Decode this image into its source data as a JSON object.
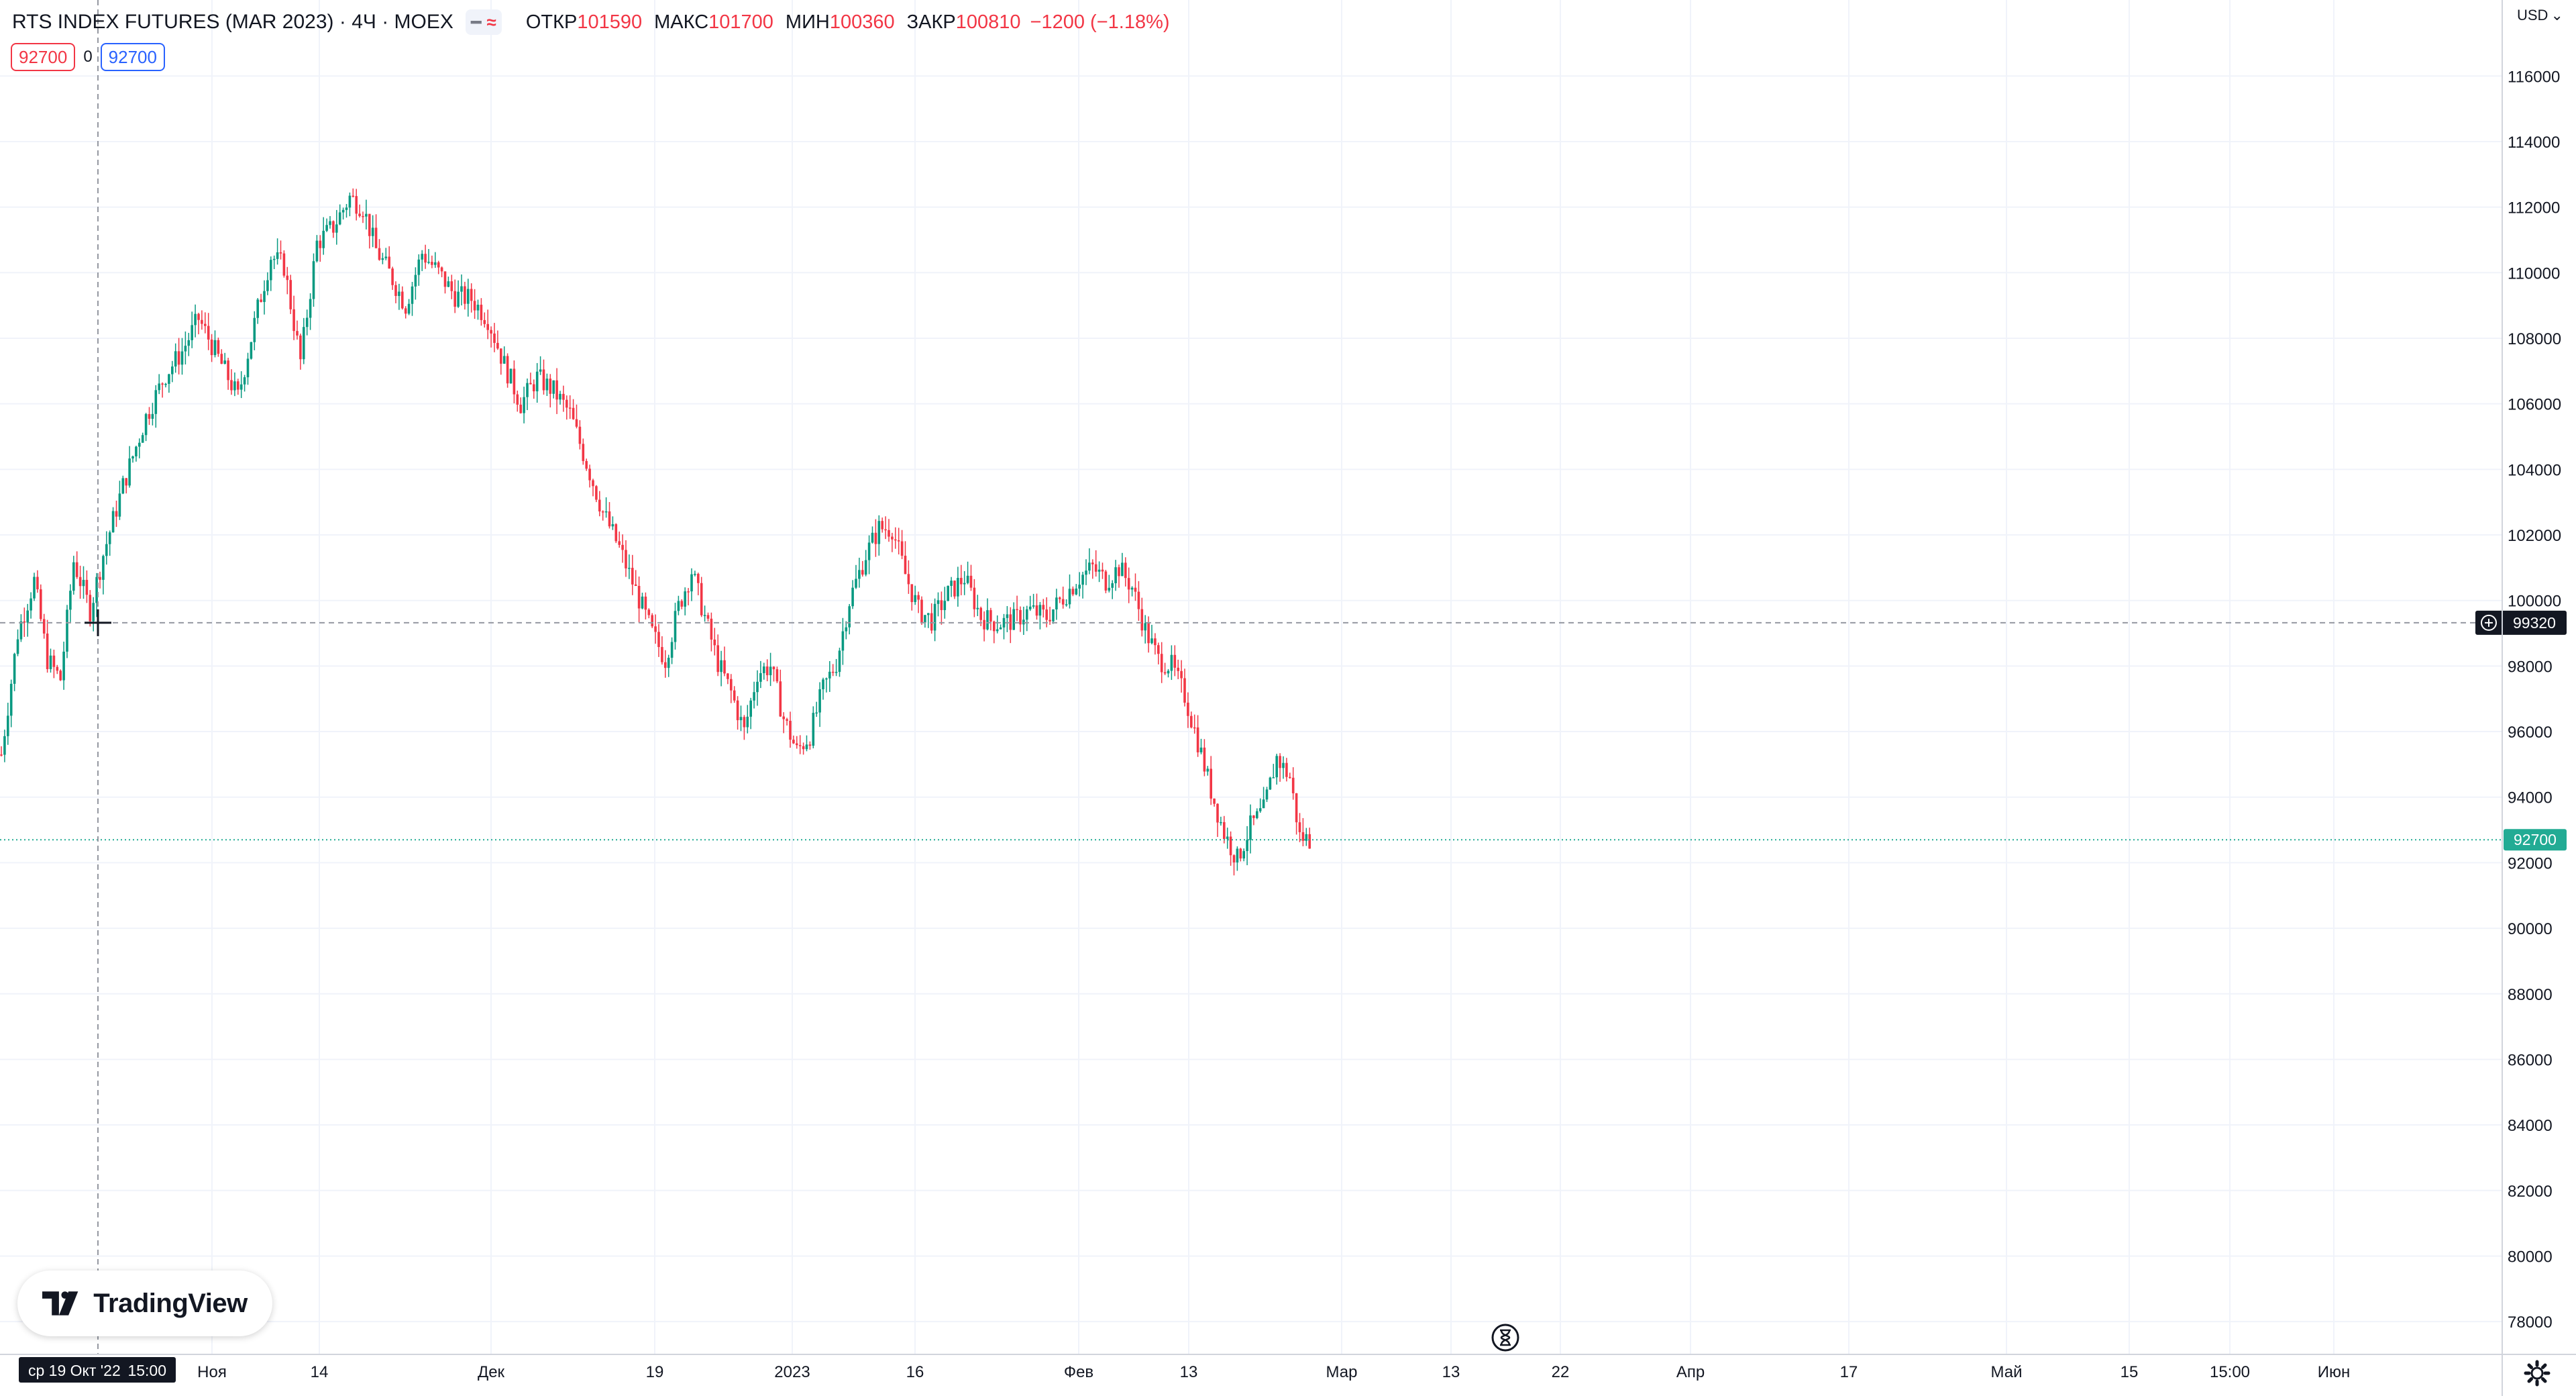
{
  "legend": {
    "title": "RTS INDEX FUTURES (MAR 2023) · 4Ч · MOEX",
    "collapse_icon": "minus-icon",
    "compare_icon": "wave-icon",
    "open_label": "ОТКР",
    "open_value": "101590",
    "high_label": "МАКС",
    "high_value": "101700",
    "low_label": "МИН",
    "low_value": "100360",
    "close_label": "ЗАКР",
    "close_value": "100810",
    "change": "−1200 (−1.18%)"
  },
  "order_row": {
    "sell_price": "92700",
    "spread": "0",
    "buy_price": "92700"
  },
  "currency": {
    "label": "USD",
    "icon": "chevron-down-icon"
  },
  "branding": {
    "logo_text": "TradingView"
  },
  "crosshair": {
    "price_label": "99320",
    "time_label": "ср 19 Окт '22",
    "time_label_hour": "15:00",
    "icon": "plus-circle-icon"
  },
  "last_price_label": "92700",
  "icons": {
    "settings": "gear-icon",
    "replay": "hourglass-icon"
  },
  "colors": {
    "up": "#089981",
    "down": "#f23645",
    "grid": "#f0f3fa",
    "crosshair_label_bg": "#131722",
    "last_price_bg": "#22ab94"
  },
  "chart_data": {
    "type": "candlestick",
    "title": "RTS INDEX FUTURES (MAR 2023) · 4Ч · MOEX",
    "ylim": [
      77000,
      117500
    ],
    "y_ticks": [
      116000,
      114000,
      112000,
      110000,
      108000,
      106000,
      104000,
      102000,
      100000,
      98000,
      96000,
      94000,
      92000,
      90000,
      88000,
      86000,
      84000,
      82000,
      80000,
      78000
    ],
    "x_ticks": [
      "Ноя",
      "14",
      "Дек",
      "19",
      "2023",
      "16",
      "Фев",
      "13",
      "Мар",
      "13",
      "22",
      "Апр",
      "17",
      "Май",
      "15",
      "15:00",
      "Июн"
    ],
    "grid": true,
    "legend_position": "top-left",
    "crosshair_price": 99320,
    "last_price": 92700,
    "close_path": [
      [
        0,
        95300
      ],
      [
        5,
        99000
      ],
      [
        10,
        100600
      ],
      [
        14,
        98200
      ],
      [
        18,
        97600
      ],
      [
        22,
        101200
      ],
      [
        27,
        99700
      ],
      [
        31,
        101400
      ],
      [
        37,
        103500
      ],
      [
        44,
        105600
      ],
      [
        50,
        106900
      ],
      [
        55,
        107600
      ],
      [
        60,
        108600
      ],
      [
        67,
        107200
      ],
      [
        72,
        106200
      ],
      [
        78,
        108900
      ],
      [
        82,
        110500
      ],
      [
        86,
        110200
      ],
      [
        91,
        107300
      ],
      [
        96,
        110900
      ],
      [
        101,
        111400
      ],
      [
        106,
        112300
      ],
      [
        110,
        112000
      ],
      [
        114,
        110700
      ],
      [
        118,
        110000
      ],
      [
        123,
        109000
      ],
      [
        128,
        110600
      ],
      [
        133,
        110000
      ],
      [
        138,
        109300
      ],
      [
        143,
        109200
      ],
      [
        148,
        108600
      ],
      [
        153,
        107200
      ],
      [
        158,
        106000
      ],
      [
        163,
        106800
      ],
      [
        168,
        106400
      ],
      [
        173,
        105700
      ],
      [
        178,
        104200
      ],
      [
        183,
        102700
      ],
      [
        188,
        101600
      ],
      [
        193,
        100300
      ],
      [
        198,
        99000
      ],
      [
        202,
        98200
      ],
      [
        206,
        99800
      ],
      [
        210,
        100900
      ],
      [
        214,
        99500
      ],
      [
        218,
        98100
      ],
      [
        222,
        97200
      ],
      [
        226,
        96000
      ],
      [
        230,
        97800
      ],
      [
        234,
        98000
      ],
      [
        238,
        96400
      ],
      [
        242,
        95400
      ],
      [
        246,
        95900
      ],
      [
        250,
        97300
      ],
      [
        254,
        98100
      ],
      [
        258,
        100000
      ],
      [
        263,
        101400
      ],
      [
        267,
        102200
      ],
      [
        271,
        102200
      ],
      [
        275,
        100800
      ],
      [
        279,
        99700
      ],
      [
        283,
        99400
      ],
      [
        288,
        100200
      ],
      [
        293,
        100700
      ],
      [
        298,
        99500
      ],
      [
        303,
        99300
      ],
      [
        308,
        99400
      ],
      [
        313,
        99700
      ],
      [
        318,
        99500
      ],
      [
        323,
        100100
      ],
      [
        328,
        100700
      ],
      [
        332,
        101000
      ],
      [
        336,
        100600
      ],
      [
        340,
        101000
      ],
      [
        344,
        100400
      ],
      [
        348,
        99100
      ],
      [
        352,
        98200
      ],
      [
        356,
        98000
      ],
      [
        360,
        97100
      ],
      [
        364,
        95700
      ],
      [
        368,
        94200
      ],
      [
        372,
        92900
      ],
      [
        376,
        92100
      ],
      [
        380,
        93100
      ],
      [
        384,
        93600
      ],
      [
        388,
        95200
      ],
      [
        392,
        94600
      ],
      [
        395,
        92800
      ],
      [
        398,
        92700
      ]
    ]
  }
}
